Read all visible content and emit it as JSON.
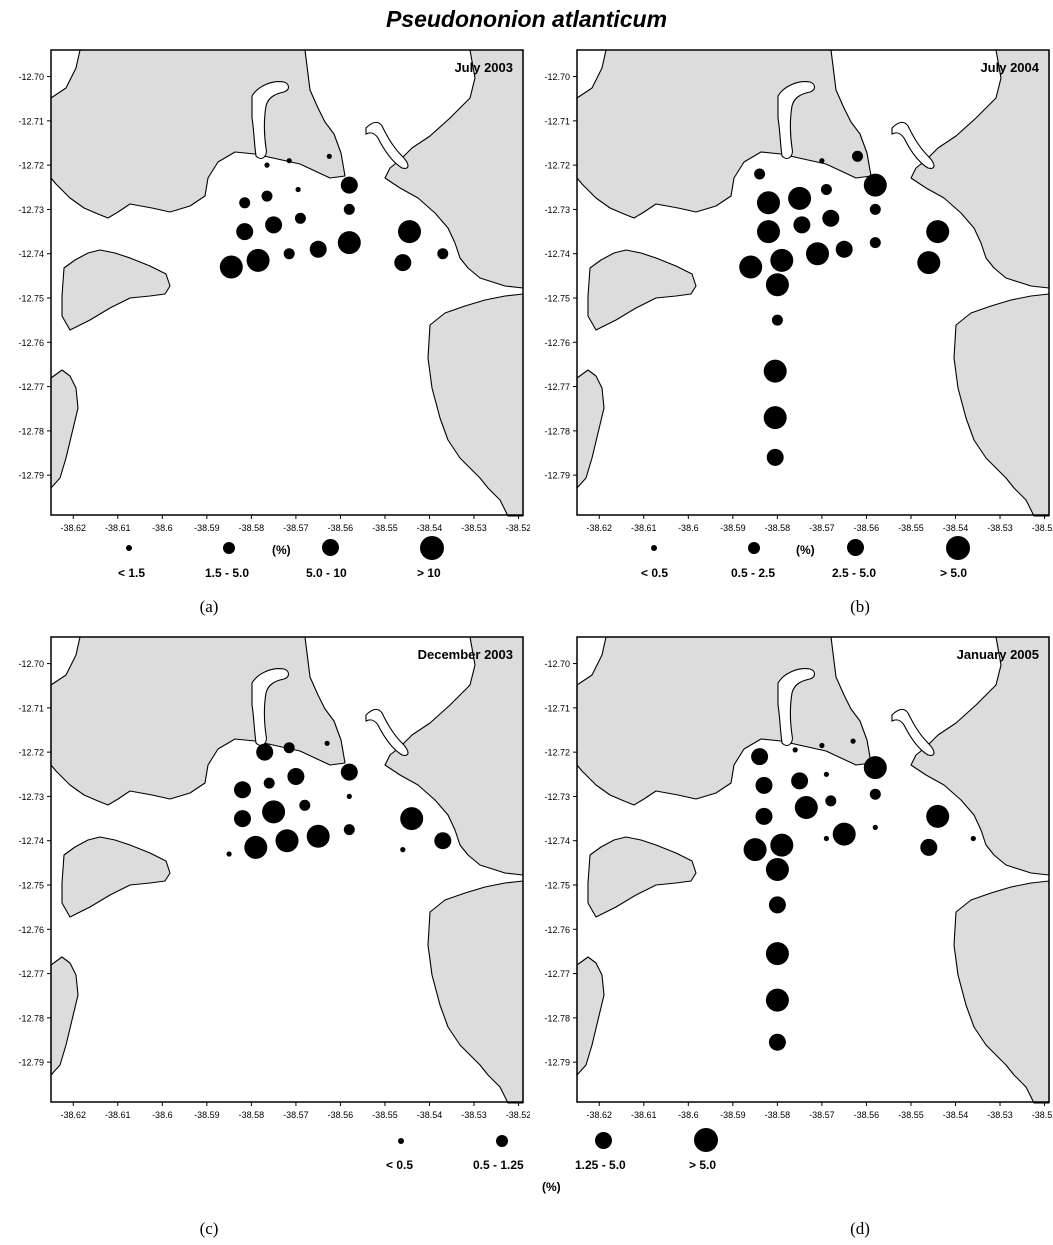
{
  "title": "Pseudononion atlanticum",
  "y_ticks": [
    "-12.70",
    "-12.71",
    "-12.72",
    "-12.73",
    "-12.74",
    "-12.75",
    "-12.76",
    "-12.77",
    "-12.78",
    "-12.79"
  ],
  "x_ticks": [
    "-38.62",
    "-38.61",
    "-38.6",
    "-38.59",
    "-38.58",
    "-38.57",
    "-38.56",
    "-38.55",
    "-38.54",
    "-38.53",
    "-38.52"
  ],
  "colors": {
    "land": "#dcdcdc",
    "water": "#ffffff",
    "dot": "#000000",
    "outline": "#000000"
  },
  "panels": [
    {
      "id": "a",
      "caption": "(a)",
      "period": "July 2003",
      "legend": {
        "unit": "(%)",
        "classes": [
          "< 1.5",
          "1.5 - 5.0",
          "5.0 - 10",
          "> 10"
        ]
      },
      "stations": [
        {
          "lon": -38.5765,
          "lat": -12.72,
          "c": 0
        },
        {
          "lon": -38.5715,
          "lat": -12.719,
          "c": 0
        },
        {
          "lon": -38.5625,
          "lat": -12.718,
          "c": 0
        },
        {
          "lon": -38.558,
          "lat": -12.7245,
          "c": 2
        },
        {
          "lon": -38.5815,
          "lat": -12.7285,
          "c": 1
        },
        {
          "lon": -38.5765,
          "lat": -12.727,
          "c": 1
        },
        {
          "lon": -38.5695,
          "lat": -12.7255,
          "c": 0
        },
        {
          "lon": -38.558,
          "lat": -12.73,
          "c": 1
        },
        {
          "lon": -38.5815,
          "lat": -12.735,
          "c": 2
        },
        {
          "lon": -38.575,
          "lat": -12.7335,
          "c": 2
        },
        {
          "lon": -38.569,
          "lat": -12.732,
          "c": 1
        },
        {
          "lon": -38.558,
          "lat": -12.7375,
          "c": 3
        },
        {
          "lon": -38.565,
          "lat": -12.739,
          "c": 2
        },
        {
          "lon": -38.5715,
          "lat": -12.74,
          "c": 1
        },
        {
          "lon": -38.5785,
          "lat": -12.7415,
          "c": 3
        },
        {
          "lon": -38.5845,
          "lat": -12.743,
          "c": 3
        },
        {
          "lon": -38.5445,
          "lat": -12.735,
          "c": 3
        },
        {
          "lon": -38.546,
          "lat": -12.742,
          "c": 2
        },
        {
          "lon": -38.537,
          "lat": -12.74,
          "c": 1
        }
      ]
    },
    {
      "id": "b",
      "caption": "(b)",
      "period": "July 2004",
      "legend": {
        "unit": "(%)",
        "classes": [
          "< 0.5",
          "0.5 - 2.5",
          "2.5 - 5.0",
          "> 5.0"
        ]
      },
      "stations": [
        {
          "lon": -38.57,
          "lat": -12.719,
          "c": 0
        },
        {
          "lon": -38.562,
          "lat": -12.718,
          "c": 1
        },
        {
          "lon": -38.584,
          "lat": -12.722,
          "c": 1
        },
        {
          "lon": -38.558,
          "lat": -12.7245,
          "c": 3
        },
        {
          "lon": -38.582,
          "lat": -12.7285,
          "c": 3
        },
        {
          "lon": -38.575,
          "lat": -12.7275,
          "c": 3
        },
        {
          "lon": -38.569,
          "lat": -12.7255,
          "c": 1
        },
        {
          "lon": -38.558,
          "lat": -12.73,
          "c": 1
        },
        {
          "lon": -38.582,
          "lat": -12.735,
          "c": 3
        },
        {
          "lon": -38.5745,
          "lat": -12.7335,
          "c": 2
        },
        {
          "lon": -38.568,
          "lat": -12.732,
          "c": 2
        },
        {
          "lon": -38.558,
          "lat": -12.7375,
          "c": 1
        },
        {
          "lon": -38.565,
          "lat": -12.739,
          "c": 2
        },
        {
          "lon": -38.571,
          "lat": -12.74,
          "c": 3
        },
        {
          "lon": -38.579,
          "lat": -12.7415,
          "c": 3
        },
        {
          "lon": -38.586,
          "lat": -12.743,
          "c": 3
        },
        {
          "lon": -38.544,
          "lat": -12.735,
          "c": 3
        },
        {
          "lon": -38.546,
          "lat": -12.742,
          "c": 3
        },
        {
          "lon": -38.58,
          "lat": -12.747,
          "c": 3
        },
        {
          "lon": -38.58,
          "lat": -12.755,
          "c": 1
        },
        {
          "lon": -38.5805,
          "lat": -12.7665,
          "c": 3
        },
        {
          "lon": -38.5805,
          "lat": -12.777,
          "c": 3
        },
        {
          "lon": -38.5805,
          "lat": -12.786,
          "c": 2
        }
      ]
    },
    {
      "id": "c",
      "caption": "(c)",
      "period": "December 2003",
      "legend": null,
      "stations": [
        {
          "lon": -38.577,
          "lat": -12.72,
          "c": 2
        },
        {
          "lon": -38.5715,
          "lat": -12.719,
          "c": 1
        },
        {
          "lon": -38.563,
          "lat": -12.718,
          "c": 0
        },
        {
          "lon": -38.558,
          "lat": -12.7245,
          "c": 2
        },
        {
          "lon": -38.582,
          "lat": -12.7285,
          "c": 2
        },
        {
          "lon": -38.576,
          "lat": -12.727,
          "c": 1
        },
        {
          "lon": -38.57,
          "lat": -12.7255,
          "c": 2
        },
        {
          "lon": -38.558,
          "lat": -12.73,
          "c": 0
        },
        {
          "lon": -38.582,
          "lat": -12.735,
          "c": 2
        },
        {
          "lon": -38.575,
          "lat": -12.7335,
          "c": 3
        },
        {
          "lon": -38.568,
          "lat": -12.732,
          "c": 1
        },
        {
          "lon": -38.558,
          "lat": -12.7375,
          "c": 1
        },
        {
          "lon": -38.565,
          "lat": -12.739,
          "c": 3
        },
        {
          "lon": -38.572,
          "lat": -12.74,
          "c": 3
        },
        {
          "lon": -38.579,
          "lat": -12.7415,
          "c": 3
        },
        {
          "lon": -38.585,
          "lat": -12.743,
          "c": 0
        },
        {
          "lon": -38.544,
          "lat": -12.735,
          "c": 3
        },
        {
          "lon": -38.546,
          "lat": -12.742,
          "c": 0
        },
        {
          "lon": -38.537,
          "lat": -12.74,
          "c": 2
        }
      ]
    },
    {
      "id": "d",
      "caption": "(d)",
      "period": "January 2005",
      "legend": {
        "unit": "(%)",
        "classes": [
          "< 0.5",
          "0.5 - 1.25",
          "1.25 - 5.0",
          "> 5.0"
        ]
      },
      "stations": [
        {
          "lon": -38.576,
          "lat": -12.7195,
          "c": 0
        },
        {
          "lon": -38.57,
          "lat": -12.7185,
          "c": 0
        },
        {
          "lon": -38.563,
          "lat": -12.7175,
          "c": 0
        },
        {
          "lon": -38.584,
          "lat": -12.721,
          "c": 2
        },
        {
          "lon": -38.558,
          "lat": -12.7235,
          "c": 3
        },
        {
          "lon": -38.583,
          "lat": -12.7275,
          "c": 2
        },
        {
          "lon": -38.575,
          "lat": -12.7265,
          "c": 2
        },
        {
          "lon": -38.569,
          "lat": -12.725,
          "c": 0
        },
        {
          "lon": -38.558,
          "lat": -12.7295,
          "c": 1
        },
        {
          "lon": -38.583,
          "lat": -12.7345,
          "c": 2
        },
        {
          "lon": -38.5735,
          "lat": -12.7325,
          "c": 3
        },
        {
          "lon": -38.568,
          "lat": -12.731,
          "c": 1
        },
        {
          "lon": -38.558,
          "lat": -12.737,
          "c": 0
        },
        {
          "lon": -38.565,
          "lat": -12.7385,
          "c": 3
        },
        {
          "lon": -38.569,
          "lat": -12.7395,
          "c": 0
        },
        {
          "lon": -38.579,
          "lat": -12.741,
          "c": 3
        },
        {
          "lon": -38.585,
          "lat": -12.742,
          "c": 3
        },
        {
          "lon": -38.544,
          "lat": -12.7345,
          "c": 3
        },
        {
          "lon": -38.546,
          "lat": -12.7415,
          "c": 2
        },
        {
          "lon": -38.536,
          "lat": -12.7395,
          "c": 0
        },
        {
          "lon": -38.58,
          "lat": -12.7465,
          "c": 3
        },
        {
          "lon": -38.58,
          "lat": -12.7545,
          "c": 2
        },
        {
          "lon": -38.58,
          "lat": -12.7655,
          "c": 3
        },
        {
          "lon": -38.58,
          "lat": -12.776,
          "c": 3
        },
        {
          "lon": -38.58,
          "lat": -12.7855,
          "c": 2
        }
      ]
    }
  ]
}
